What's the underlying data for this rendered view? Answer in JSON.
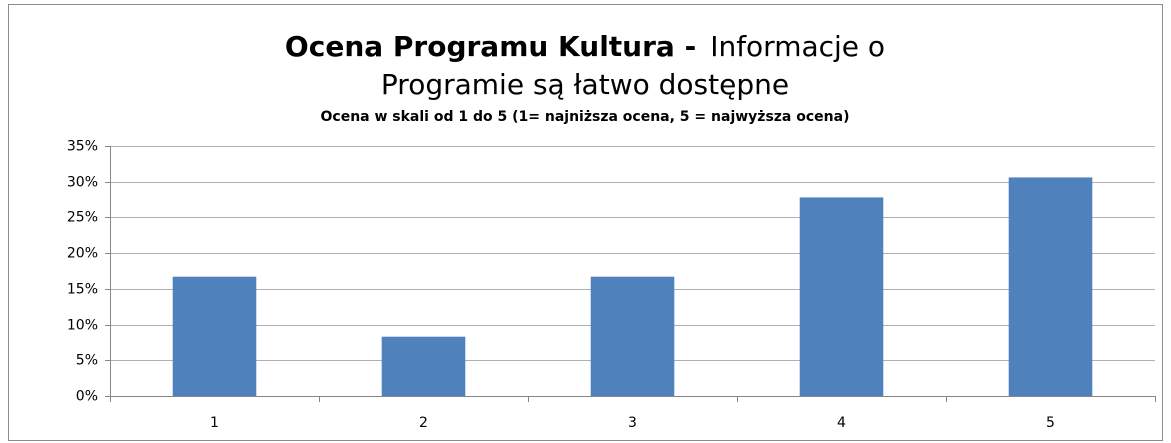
{
  "chart_data": {
    "type": "bar",
    "title": [
      "Ocena Programu Kultura -",
      "Informacje o",
      "Programie są łatwo dostępne"
    ],
    "subtitle": "Ocena w skali od 1 do 5 (1= najniższa ocena, 5 = najwyższa ocena)",
    "categories": [
      "1",
      "2",
      "3",
      "4",
      "5"
    ],
    "values": [
      16.7,
      8.3,
      16.7,
      27.8,
      30.6
    ],
    "color": "#4f81bd",
    "ylim": [
      0,
      35
    ],
    "yticks": [
      {
        "value": 0,
        "label": "0%"
      },
      {
        "value": 5,
        "label": "5%"
      },
      {
        "value": 10,
        "label": "10%"
      },
      {
        "value": 15,
        "label": "15%"
      },
      {
        "value": 20,
        "label": "20%"
      },
      {
        "value": 25,
        "label": "25%"
      },
      {
        "value": 30,
        "label": "30%"
      },
      {
        "value": 35,
        "label": "35%"
      }
    ],
    "grid": true
  }
}
